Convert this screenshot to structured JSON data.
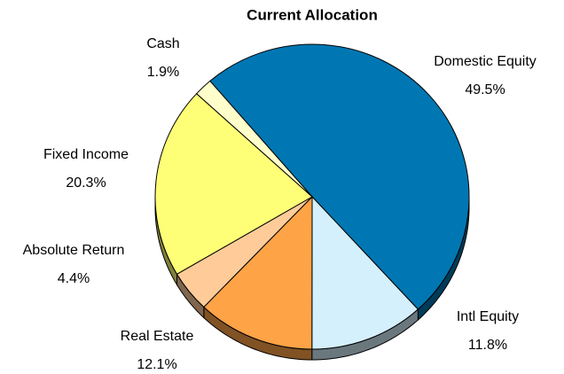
{
  "chart_data": {
    "type": "pie3d",
    "title": "Current Allocation",
    "categories": [
      "Domestic Equity",
      "Intl Equity",
      "Real Estate",
      "Absolute Return",
      "Fixed Income",
      "Cash"
    ],
    "values": [
      49.5,
      11.8,
      12.1,
      4.4,
      20.3,
      1.9
    ],
    "value_labels": [
      "49.5%",
      "11.8%",
      "12.1%",
      "4.4%",
      "20.3%",
      "1.9%"
    ],
    "colors": [
      "#0077b3",
      "#d4f0fc",
      "#ffa347",
      "#ffcc99",
      "#ffff77",
      "#ffffcc"
    ]
  }
}
